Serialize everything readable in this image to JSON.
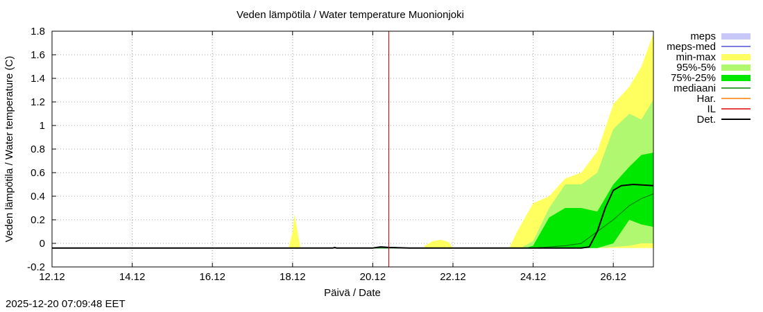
{
  "chart_data": {
    "type": "area",
    "title": "Veden lämpötila / Water temperature Muonionjoki",
    "xlabel": "Päivä / Date",
    "ylabel": "Veden lämpötila / Water temperature (C)",
    "timestamp": "2025-12-20 07:09:48 EET",
    "x_range": [
      0,
      15
    ],
    "ylim": [
      -0.2,
      1.8
    ],
    "x_ticks": [
      {
        "x": 0,
        "label": "12.12"
      },
      {
        "x": 2,
        "label": "14.12"
      },
      {
        "x": 4,
        "label": "16.12"
      },
      {
        "x": 6,
        "label": "18.12"
      },
      {
        "x": 8,
        "label": "20.12"
      },
      {
        "x": 10,
        "label": "22.12"
      },
      {
        "x": 12,
        "label": "24.12"
      },
      {
        "x": 14,
        "label": "26.12"
      }
    ],
    "y_ticks": [
      {
        "y": -0.2,
        "label": "-0.2"
      },
      {
        "y": 0,
        "label": "0"
      },
      {
        "y": 0.2,
        "label": "0.2"
      },
      {
        "y": 0.4,
        "label": "0.4"
      },
      {
        "y": 0.6,
        "label": "0.6"
      },
      {
        "y": 0.8,
        "label": "0.8"
      },
      {
        "y": 1.0,
        "label": "1"
      },
      {
        "y": 1.2,
        "label": "1.2"
      },
      {
        "y": 1.4,
        "label": "1.4"
      },
      {
        "y": 1.6,
        "label": "1.6"
      },
      {
        "y": 1.8,
        "label": "1.8"
      }
    ],
    "grid": true,
    "legend_position": "right",
    "legend": [
      {
        "label": "meps",
        "kind": "box",
        "color": "#c8c8f8"
      },
      {
        "label": "meps-med",
        "kind": "line",
        "color": "#5050d0"
      },
      {
        "label": "min-max",
        "kind": "box",
        "color": "#ffff60"
      },
      {
        "label": "95%-5%",
        "kind": "box",
        "color": "#b0f870"
      },
      {
        "label": "75%-25%",
        "kind": "box",
        "color": "#00e800"
      },
      {
        "label": "mediaani",
        "kind": "line",
        "color": "#008000"
      },
      {
        "label": "Har.",
        "kind": "line",
        "color": "#ff8000"
      },
      {
        "label": "IL",
        "kind": "line",
        "color": "#e00000"
      },
      {
        "label": "Det.",
        "kind": "line",
        "color": "#000000"
      }
    ],
    "vline": {
      "x": 8.4,
      "color": "#cc0000"
    },
    "series": [
      {
        "name": "min-max",
        "type": "band",
        "color": "#ffff60",
        "segments": [
          {
            "x": [
              5.9,
              6.0,
              6.05,
              6.1,
              6.15,
              6.2
            ],
            "lower": [
              -0.04,
              -0.04,
              -0.04,
              -0.04,
              -0.04,
              -0.04
            ],
            "upper": [
              -0.04,
              0.1,
              0.25,
              0.15,
              0.05,
              -0.04
            ]
          },
          {
            "x": [
              9.3,
              9.5,
              9.7,
              9.9,
              10.0
            ],
            "lower": [
              -0.04,
              -0.04,
              -0.04,
              -0.04,
              -0.04
            ],
            "upper": [
              -0.02,
              0.02,
              0.03,
              0.01,
              -0.04
            ]
          },
          {
            "x": [
              11.4,
              11.6,
              11.8,
              12.0,
              12.4,
              12.8,
              13.2,
              13.6,
              14.0,
              14.4,
              14.7,
              15.0
            ],
            "lower": [
              -0.04,
              -0.04,
              -0.04,
              -0.04,
              -0.04,
              -0.04,
              -0.04,
              -0.04,
              -0.04,
              -0.04,
              -0.04,
              -0.04
            ],
            "upper": [
              -0.04,
              0.1,
              0.22,
              0.34,
              0.4,
              0.55,
              0.6,
              0.78,
              1.18,
              1.33,
              1.5,
              1.78
            ]
          }
        ]
      },
      {
        "name": "95%-5%",
        "type": "band",
        "color": "#b0f870",
        "segments": [
          {
            "x": [
              11.7,
              12.0,
              12.4,
              12.8,
              13.2,
              13.6,
              14.0,
              14.4,
              14.7,
              15.0
            ],
            "lower": [
              -0.04,
              -0.04,
              -0.04,
              -0.04,
              -0.04,
              -0.04,
              -0.03,
              -0.02,
              0.0,
              0.0
            ],
            "upper": [
              -0.04,
              0.02,
              0.3,
              0.5,
              0.5,
              0.6,
              0.97,
              1.1,
              1.05,
              1.22
            ]
          }
        ]
      },
      {
        "name": "75%-25%",
        "type": "band",
        "color": "#00e800",
        "segments": [
          {
            "x": [
              11.8,
              12.0,
              12.4,
              12.8,
              13.2,
              13.6,
              14.0,
              14.4,
              14.7,
              15.0
            ],
            "lower": [
              -0.04,
              -0.04,
              -0.04,
              -0.04,
              -0.04,
              -0.04,
              0.0,
              0.2,
              0.16,
              0.14
            ],
            "upper": [
              -0.04,
              -0.02,
              0.22,
              0.3,
              0.3,
              0.27,
              0.5,
              0.65,
              0.75,
              0.77
            ]
          }
        ]
      },
      {
        "name": "mediaani",
        "type": "line",
        "color": "#008000",
        "x": [
          0,
          11.8,
          12.0,
          12.4,
          12.8,
          13.2,
          13.6,
          14.0,
          14.4,
          14.7,
          15.0
        ],
        "y": [
          -0.04,
          -0.04,
          -0.04,
          -0.03,
          -0.02,
          0.0,
          0.1,
          0.2,
          0.32,
          0.38,
          0.42
        ]
      },
      {
        "name": "Det.",
        "type": "line",
        "color": "#000000",
        "x": [
          0,
          7.0,
          7.05,
          7.1,
          8.0,
          8.1,
          8.2,
          8.4,
          8.9,
          11.8,
          13.2,
          13.4,
          13.6,
          13.8,
          14.0,
          14.2,
          14.5,
          15.0
        ],
        "y": [
          -0.04,
          -0.04,
          -0.035,
          -0.04,
          -0.04,
          -0.035,
          -0.03,
          -0.035,
          -0.04,
          -0.04,
          -0.04,
          -0.03,
          0.1,
          0.3,
          0.45,
          0.49,
          0.5,
          0.49
        ]
      }
    ]
  }
}
